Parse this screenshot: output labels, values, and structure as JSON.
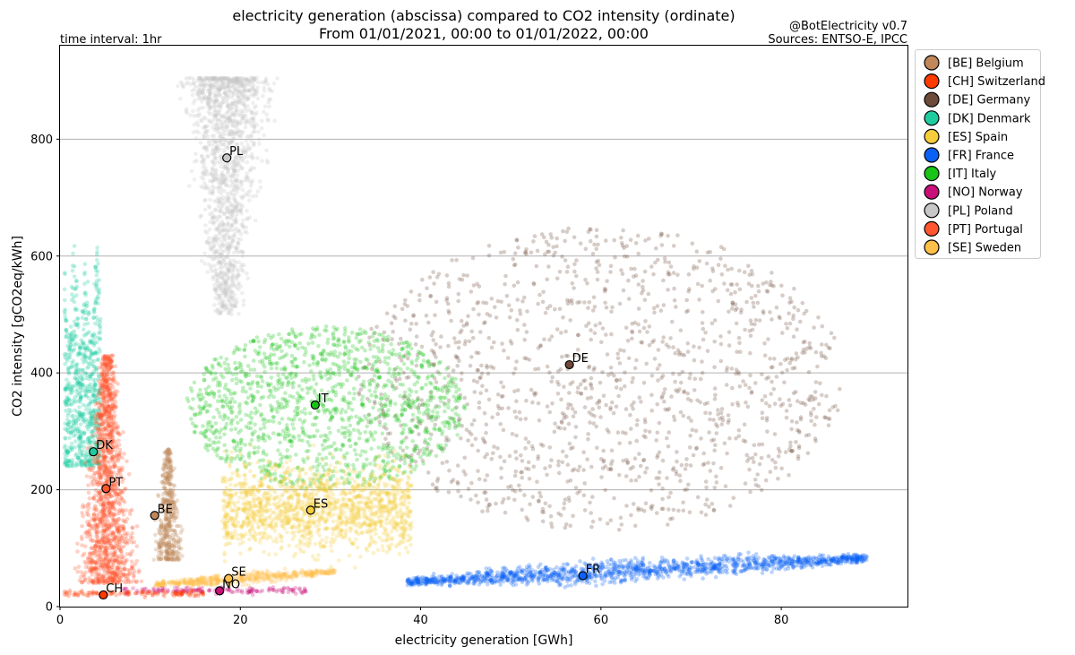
{
  "chart_data": {
    "type": "scatter",
    "title_line1": "electricity generation (abscissa) compared to CO2 intensity (ordinate)",
    "title_line2": "From 01/01/2021, 00:00 to 01/01/2022, 00:00",
    "time_interval": "time interval: 1hr",
    "credit_line1": "@BotElectricity v0.7",
    "credit_line2": "Sources: ENTSO-E, IPCC",
    "xlabel": "electricity generation [GWh]",
    "ylabel": "CO2 intensity [gCO2eq/kWh]",
    "xlim": [
      0,
      94
    ],
    "ylim": [
      0,
      960
    ],
    "xticks": [
      0,
      20,
      40,
      60,
      80
    ],
    "yticks": [
      0,
      200,
      400,
      600,
      800
    ],
    "grid": "horizontal",
    "legend_position": "outside-right-top",
    "series": [
      {
        "code": "BE",
        "name": "[BE] Belgium",
        "color": "#c0885a",
        "centroid": [
          10.5,
          156
        ],
        "cloud": [
          {
            "x": [
              9.5,
              14.5
            ],
            "y": [
              80,
              270
            ],
            "taper": "top"
          }
        ]
      },
      {
        "code": "CH",
        "name": "[CH] Switzerland",
        "color": "#ff3b00",
        "centroid": [
          4.8,
          20
        ],
        "cloud": [
          {
            "x": [
              0.5,
              16
            ],
            "y": [
              15,
              30
            ],
            "taper": "none"
          }
        ]
      },
      {
        "code": "DE",
        "name": "[DE] Germany",
        "color": "#6e4a3a",
        "centroid": [
          56.5,
          414
        ],
        "cloud": [
          {
            "x": [
              33,
              87
            ],
            "y": [
              130,
              650
            ],
            "taper": "ellipse"
          }
        ]
      },
      {
        "code": "DK",
        "name": "[DK] Denmark",
        "color": "#1ecca0",
        "centroid": [
          3.7,
          265
        ],
        "cloud": [
          {
            "x": [
              0.5,
              4.5
            ],
            "y": [
              240,
              625
            ],
            "taper": "spiky"
          }
        ]
      },
      {
        "code": "ES",
        "name": "[ES] Spain",
        "color": "#f5cd3a",
        "centroid": [
          27.8,
          165
        ],
        "cloud": [
          {
            "x": [
              18,
              39
            ],
            "y": [
              60,
              280
            ],
            "taper": "none"
          }
        ]
      },
      {
        "code": "FR",
        "name": "[FR] France",
        "color": "#0a61f5",
        "centroid": [
          58,
          53
        ],
        "cloud": [
          {
            "x": [
              38.5,
              89.5
            ],
            "y": [
              20,
              110
            ],
            "taper": "wedge"
          }
        ]
      },
      {
        "code": "IT",
        "name": "[IT] Italy",
        "color": "#18c418",
        "centroid": [
          28.3,
          345
        ],
        "cloud": [
          {
            "x": [
              14,
              45
            ],
            "y": [
              200,
              480
            ],
            "taper": "ellipse"
          }
        ]
      },
      {
        "code": "NO",
        "name": "[NO] Norway",
        "color": "#c8107a",
        "centroid": [
          17.7,
          27
        ],
        "cloud": [
          {
            "x": [
              7,
              27.5
            ],
            "y": [
              20,
              35
            ],
            "taper": "none"
          }
        ]
      },
      {
        "code": "PL",
        "name": "[PL] Poland",
        "color": "#c7c7c7",
        "centroid": [
          18.5,
          768
        ],
        "cloud": [
          {
            "x": [
              11.5,
              25.5
            ],
            "y": [
              500,
              905
            ],
            "taper": "bottom"
          }
        ]
      },
      {
        "code": "PT",
        "name": "[PT] Portugal",
        "color": "#ff5530",
        "centroid": [
          5.1,
          202
        ],
        "cloud": [
          {
            "x": [
              0.5,
              10
            ],
            "y": [
              40,
              430
            ],
            "taper": "top"
          }
        ]
      },
      {
        "code": "SE",
        "name": "[SE] Sweden",
        "color": "#ffc04a",
        "centroid": [
          18.7,
          48
        ],
        "cloud": [
          {
            "x": [
              10.5,
              30.5
            ],
            "y": [
              25,
              75
            ],
            "taper": "wedge"
          }
        ]
      }
    ]
  }
}
